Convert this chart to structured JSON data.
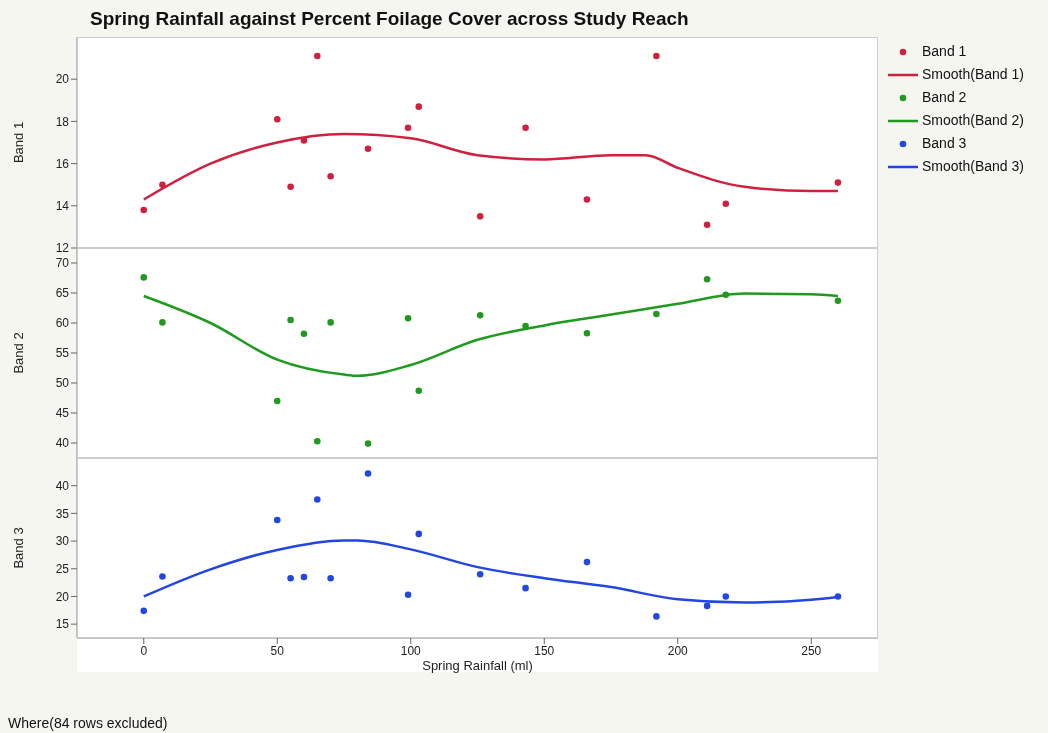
{
  "chart_data": [
    {
      "type": "scatter",
      "title": "Spring Rainfall against Percent Foilage Cover across Study Reach",
      "ylabel": "Band 1",
      "xlim": [
        -25,
        275
      ],
      "ylim": [
        12,
        22
      ],
      "yticks": [
        12,
        14,
        16,
        18,
        20
      ],
      "tick_labels": "y",
      "legend": "right",
      "series": [
        {
          "name": "Band 1",
          "type": "scatter",
          "marker": "circle",
          "color": "#d0203f",
          "x": [
            0,
            7,
            50,
            55,
            60,
            65,
            70,
            84,
            99,
            103,
            126,
            143,
            166,
            192,
            211,
            218,
            260
          ],
          "values": [
            13.8,
            15.0,
            18.1,
            14.9,
            17.1,
            21.1,
            15.4,
            16.7,
            17.7,
            18.7,
            13.5,
            17.7,
            14.3,
            21.1,
            13.1,
            14.1,
            15.1
          ]
        },
        {
          "name": "Smooth(Band 1)",
          "type": "line",
          "marker": "none",
          "color": "#d0203f",
          "x": [
            0,
            25,
            50,
            75,
            100,
            125,
            150,
            175,
            188,
            200,
            225,
            250,
            260
          ],
          "values": [
            14.3,
            16.0,
            17.0,
            17.4,
            17.2,
            16.4,
            16.2,
            16.4,
            16.4,
            15.8,
            14.9,
            14.7,
            14.7
          ]
        }
      ]
    },
    {
      "type": "scatter",
      "ylabel": "Band 2",
      "xlim": [
        -25,
        275
      ],
      "ylim": [
        37.5,
        72.5
      ],
      "yticks": [
        40,
        45,
        50,
        55,
        60,
        65,
        70
      ],
      "tick_labels": "y",
      "legend": "right",
      "series": [
        {
          "name": "Band 2",
          "type": "scatter",
          "marker": "circle",
          "color": "#1f9a1f",
          "x": [
            0,
            7,
            50,
            55,
            60,
            65,
            70,
            84,
            99,
            103,
            126,
            143,
            166,
            192,
            211,
            218,
            260
          ],
          "values": [
            67.6,
            60.1,
            47.0,
            60.5,
            58.2,
            40.3,
            60.1,
            39.9,
            60.8,
            48.7,
            61.3,
            59.5,
            58.3,
            61.5,
            67.3,
            64.7,
            63.7
          ]
        },
        {
          "name": "Smooth(Band 2)",
          "type": "line",
          "marker": "none",
          "color": "#1f9a1f",
          "x": [
            0,
            25,
            50,
            75,
            80,
            100,
            125,
            150,
            175,
            200,
            225,
            250,
            260
          ],
          "values": [
            64.5,
            60.0,
            53.9,
            51.4,
            51.2,
            53.0,
            57.2,
            59.6,
            61.4,
            63.2,
            64.9,
            64.8,
            64.5
          ]
        }
      ]
    },
    {
      "type": "scatter",
      "xlabel": "Spring Rainfall (ml)",
      "ylabel": "Band 3",
      "xlim": [
        -25,
        275
      ],
      "xticks": [
        0,
        50,
        100,
        150,
        200,
        250
      ],
      "ylim": [
        12.5,
        45
      ],
      "yticks": [
        15,
        20,
        25,
        30,
        35,
        40
      ],
      "legend": "right",
      "annotations": [
        "Where(84 rows excluded)"
      ],
      "series": [
        {
          "name": "Band 3",
          "type": "scatter",
          "marker": "circle",
          "color": "#2346e0",
          "x": [
            0,
            7,
            50,
            55,
            60,
            65,
            70,
            84,
            99,
            103,
            126,
            143,
            166,
            192,
            211,
            218,
            260
          ],
          "values": [
            17.4,
            23.6,
            33.8,
            23.3,
            23.5,
            37.5,
            23.3,
            42.2,
            20.3,
            31.3,
            24.0,
            21.5,
            26.2,
            16.4,
            18.3,
            20.0,
            20.0
          ]
        },
        {
          "name": "Smooth(Band 3)",
          "type": "line",
          "marker": "none",
          "color": "#2346e0",
          "x": [
            0,
            25,
            50,
            75,
            80,
            100,
            125,
            150,
            175,
            200,
            225,
            250,
            260
          ],
          "values": [
            20.0,
            24.9,
            28.4,
            30.1,
            30.1,
            28.5,
            25.3,
            23.3,
            21.7,
            19.5,
            18.9,
            19.4,
            19.9
          ]
        }
      ]
    }
  ]
}
